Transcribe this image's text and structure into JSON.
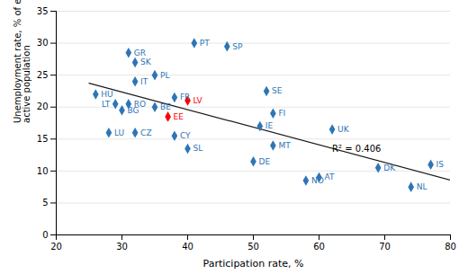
{
  "chart_data": {
    "type": "scatter",
    "x_label": "Participation rate, %",
    "y_label": "Unemployment rate, % of economically\nactive population",
    "labels": [
      "HU",
      "LU",
      "BG",
      "LT",
      "RO",
      "GR",
      "SK",
      "IT",
      "CZ",
      "BE",
      "PL",
      "EE",
      "LV",
      "FR",
      "CY",
      "SL",
      "PT",
      "SP",
      "DE",
      "IE",
      "SE",
      "FI",
      "MT",
      "NO",
      "AT",
      "UK",
      "DK",
      "NL",
      "IS"
    ],
    "x": [
      26,
      28,
      30,
      29,
      31,
      31,
      32,
      32,
      32,
      35,
      35,
      37,
      40,
      38,
      38,
      40,
      41,
      46,
      50,
      51,
      52,
      53,
      53,
      58,
      60,
      62,
      69,
      74,
      77
    ],
    "values": [
      22,
      16,
      19.5,
      20.5,
      20.5,
      28.5,
      27,
      24,
      16,
      20,
      25,
      18.5,
      21,
      21.5,
      15.5,
      13.5,
      30,
      29.5,
      11.5,
      17,
      22.5,
      19,
      14,
      8.5,
      9,
      16.5,
      10.5,
      7.5,
      11
    ],
    "colors": [
      "#2E75B6",
      "#2E75B6",
      "#2E75B6",
      "#2E75B6",
      "#2E75B6",
      "#2E75B6",
      "#2E75B6",
      "#2E75B6",
      "#2E75B6",
      "#2E75B6",
      "#2E75B6",
      "#FF0000",
      "#FF0000",
      "#2E75B6",
      "#2E75B6",
      "#2E75B6",
      "#2E75B6",
      "#2E75B6",
      "#2E75B6",
      "#2E75B6",
      "#2E75B6",
      "#2E75B6",
      "#2E75B6",
      "#2E75B6",
      "#2E75B6",
      "#2E75B6",
      "#2E75B6",
      "#2E75B6",
      "#2E75B6"
    ],
    "marker": "diamond",
    "trendline": {
      "x": [
        25,
        80
      ],
      "values": [
        23.7367,
        8.5879
      ],
      "color": "#1A1A1A"
    },
    "annotations": [
      {
        "text": "R² = 0.406",
        "x": 62,
        "y": 13.5
      }
    ],
    "xlim": [
      20,
      80
    ],
    "ylim": [
      0,
      35
    ],
    "xticks": [
      20,
      30,
      40,
      50,
      60,
      70,
      80
    ],
    "yticks": [
      0,
      5,
      10,
      15,
      20,
      25,
      30,
      35
    ],
    "grid": "y"
  }
}
